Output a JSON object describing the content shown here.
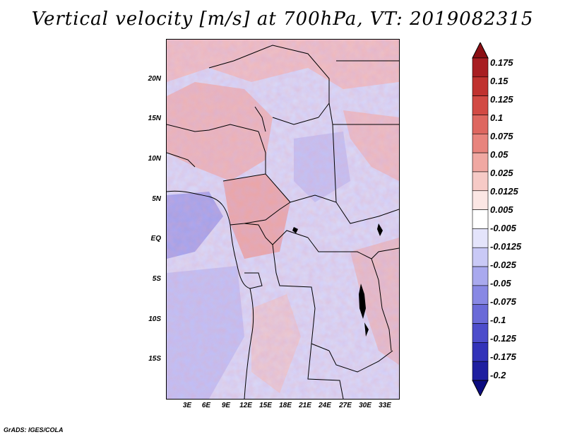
{
  "title": "Vertical velocity [m/s] at 700hPa, VT: 2019082315",
  "footer": "GrADS: IGES/COLA",
  "lat_labels": [
    "20N",
    "15N",
    "10N",
    "5N",
    "EQ",
    "5S",
    "10S",
    "15S"
  ],
  "lon_labels": [
    "3E",
    "6E",
    "9E",
    "12E",
    "15E",
    "18E",
    "21E",
    "24E",
    "27E",
    "30E",
    "33E"
  ],
  "colorbar": {
    "labels": [
      "0.175",
      "0.15",
      "0.125",
      "0.1",
      "0.075",
      "0.05",
      "0.025",
      "0.0125",
      "0.005",
      "-0.005",
      "-0.0125",
      "-0.025",
      "-0.05",
      "-0.075",
      "-0.1",
      "-0.125",
      "-0.175",
      "-0.2"
    ],
    "colors": [
      "#8b0f14",
      "#a81e22",
      "#c0322f",
      "#d24a44",
      "#de6760",
      "#e8847d",
      "#f0a8a2",
      "#f6cac6",
      "#fbe6e4",
      "#ffffff",
      "#e4e4fb",
      "#c9c9f6",
      "#a9a9ee",
      "#8888e4",
      "#6a6ad8",
      "#4d4dcb",
      "#3333b9",
      "#1f1fa0",
      "#0c0c80"
    ]
  },
  "icons": {
    "map": "terrain-map-icon"
  }
}
